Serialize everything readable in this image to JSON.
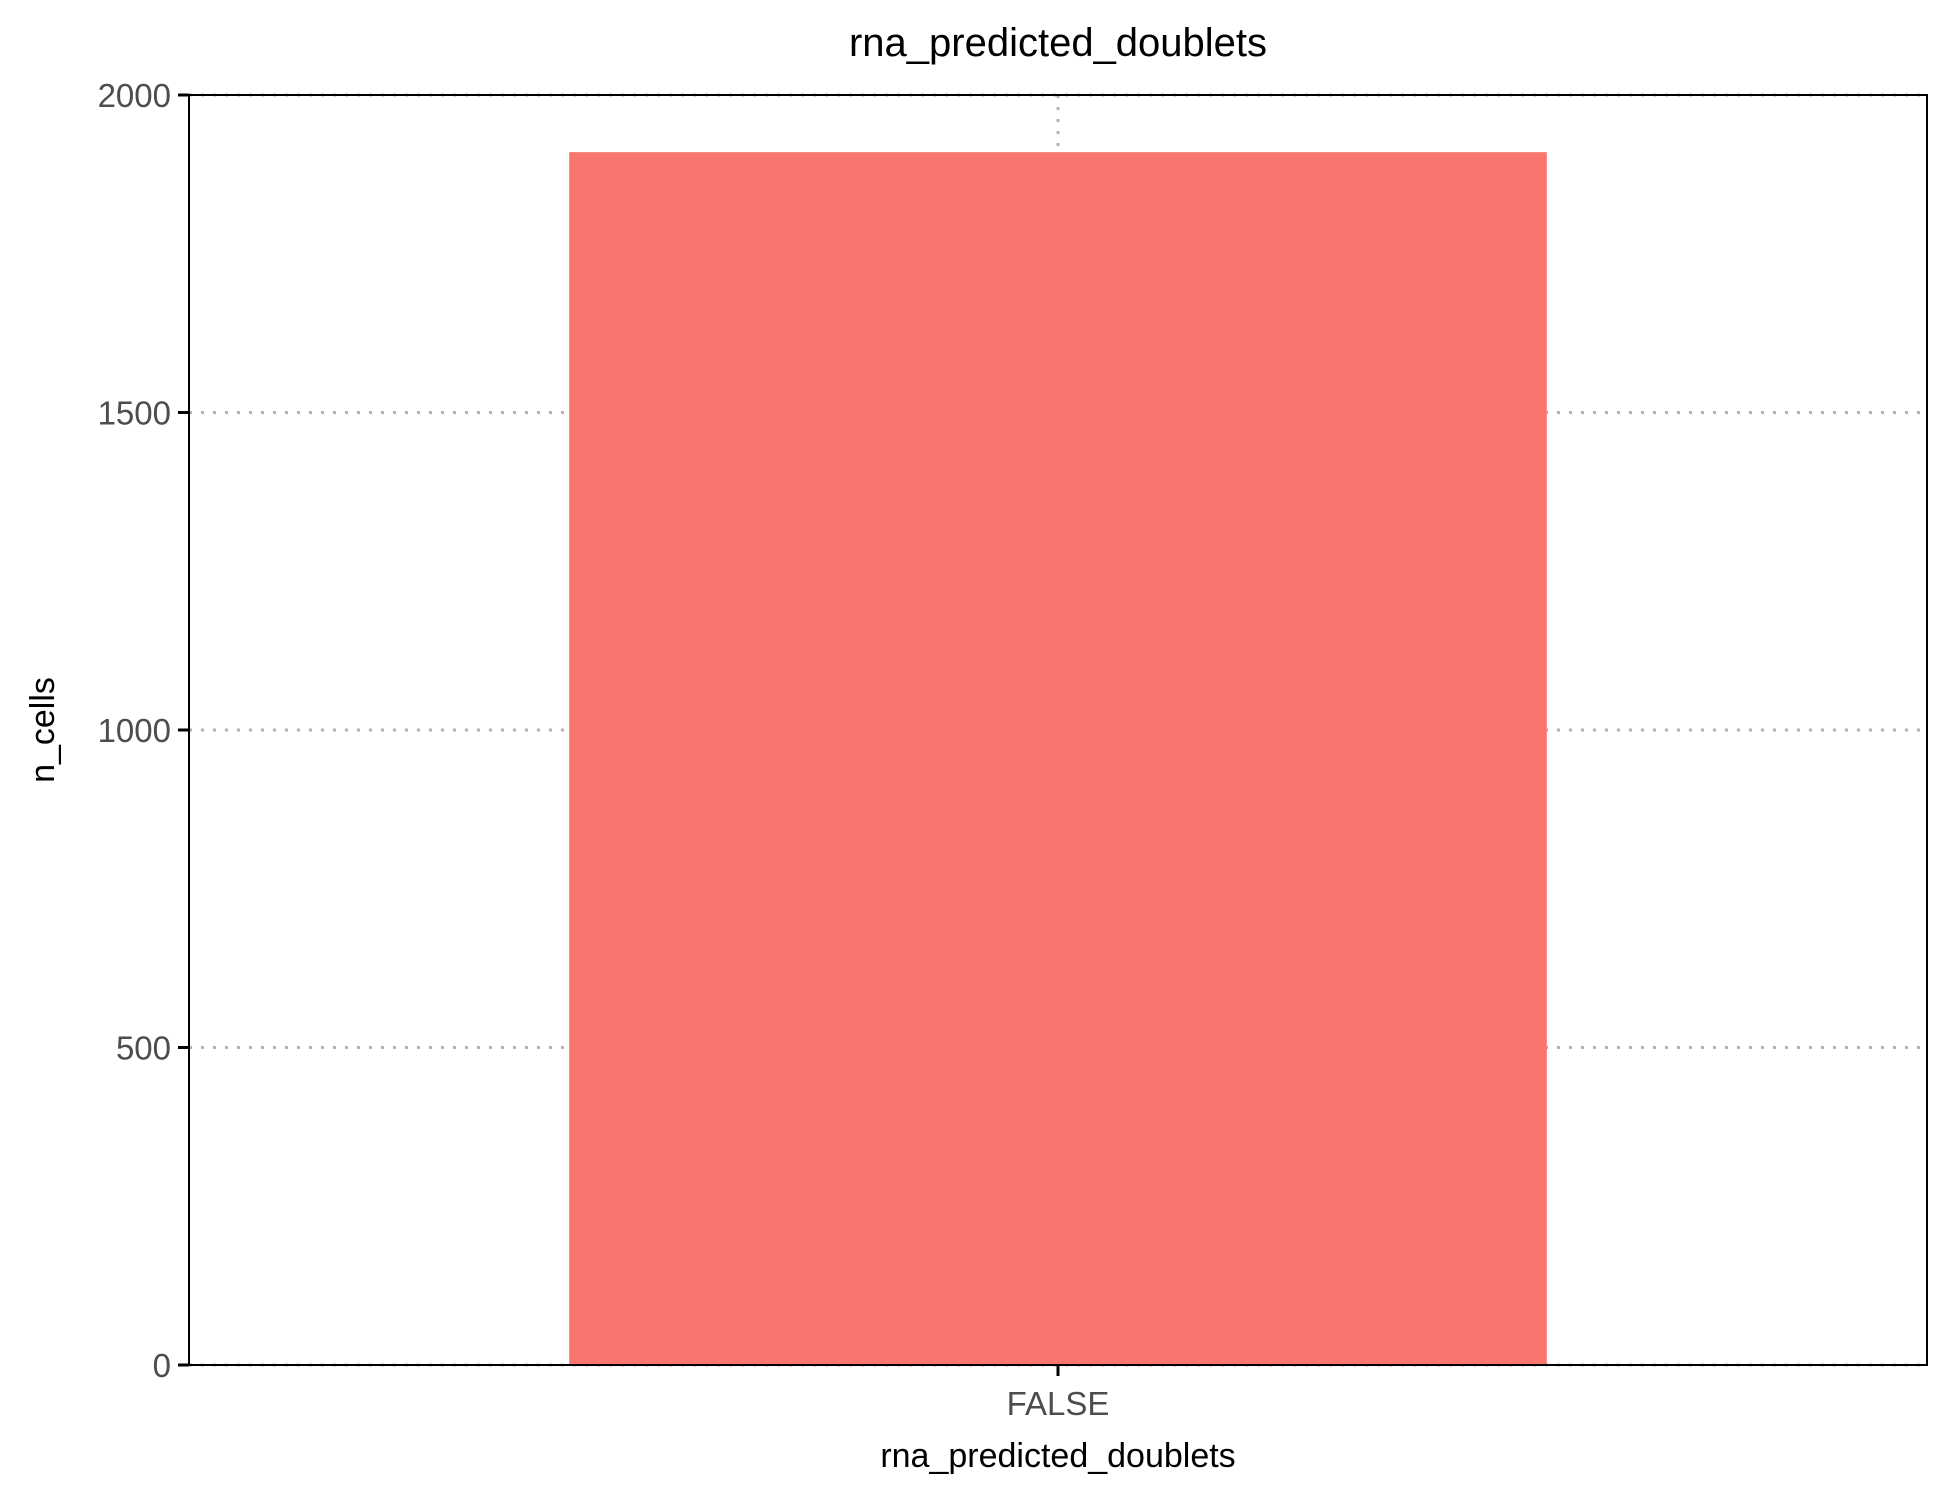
{
  "chart_data": {
    "type": "bar",
    "title": "rna_predicted_doublets",
    "xlabel": "rna_predicted_doublets",
    "ylabel": "n_cells",
    "categories": [
      "FALSE"
    ],
    "values": [
      1910
    ],
    "bar_color": "#F8766D",
    "ylim": [
      0,
      2000
    ],
    "yticks": [
      0,
      500,
      1000,
      1500,
      2000
    ],
    "grid": true,
    "legend": "none"
  }
}
